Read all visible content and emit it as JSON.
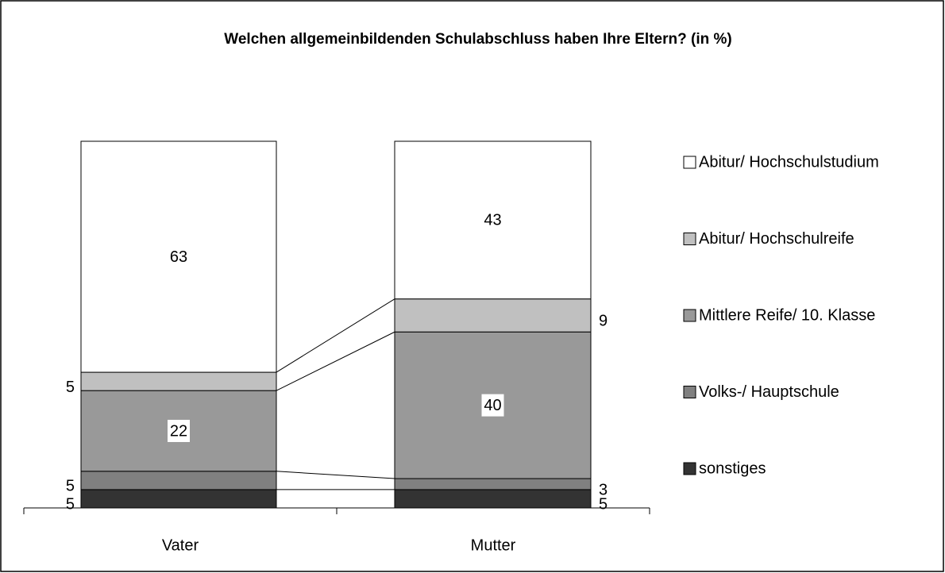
{
  "chart_data": {
    "type": "stacked_bar",
    "title": "Welchen allgemeinbildenden  Schulabschluss haben Ihre Eltern? (in %)",
    "categories": [
      "Vater",
      "Mutter"
    ],
    "series": [
      {
        "name": "sonstiges",
        "color": "#333333",
        "values": [
          5,
          5
        ]
      },
      {
        "name": "Volks-/ Hauptschule",
        "color": "#808080",
        "values": [
          5,
          3
        ]
      },
      {
        "name": "Mittlere Reife/ 10. Klasse",
        "color": "#999999",
        "values": [
          22,
          40
        ]
      },
      {
        "name": "Abitur/ Hochschulreife",
        "color": "#c0c0c0",
        "values": [
          5,
          9
        ]
      },
      {
        "name": "Abitur/ Hochschulstudium",
        "color": "#ffffff",
        "values": [
          63,
          43
        ]
      }
    ]
  }
}
